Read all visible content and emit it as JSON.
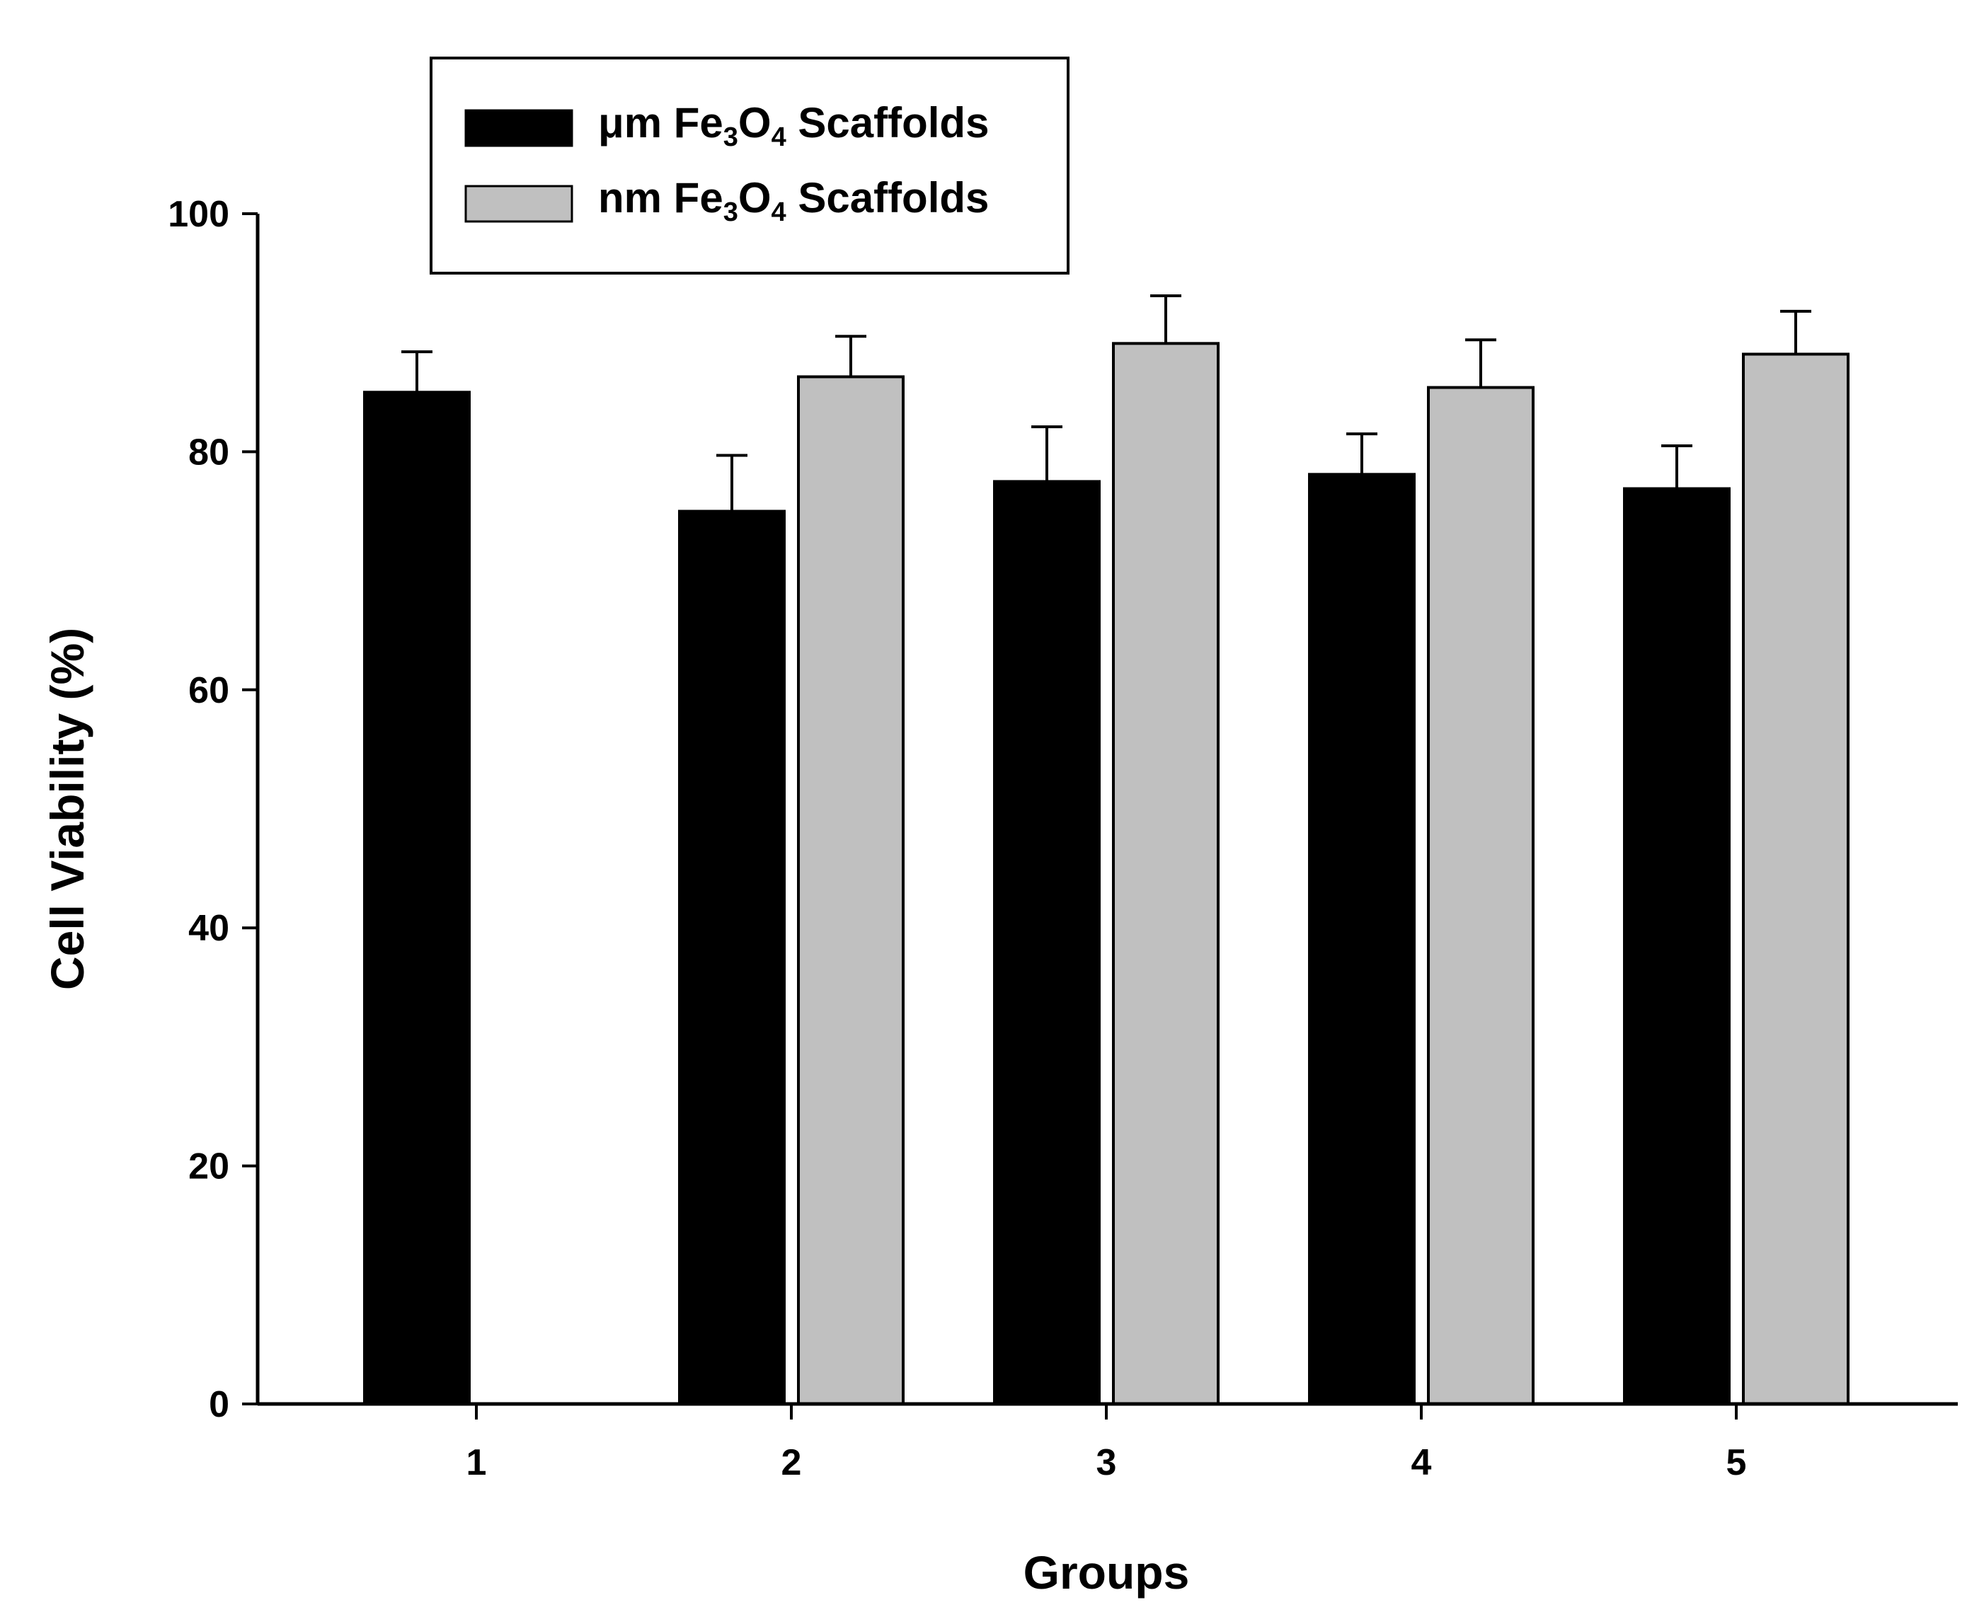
{
  "chart_data": {
    "type": "bar",
    "xlabel": "Groups",
    "ylabel": "Cell Viability (%)",
    "ylim": [
      0,
      100
    ],
    "yticks": [
      "0",
      "20",
      "40",
      "60",
      "80",
      "100"
    ],
    "categories": [
      "1",
      "2",
      "3",
      "4",
      "5"
    ],
    "series": [
      {
        "name": "μm Fe3O4 Scaffolds",
        "legend_parts": [
          "μm Fe",
          "3",
          "O",
          "4",
          " Scaffolds"
        ],
        "color": "#000000",
        "values": [
          85.0,
          75.0,
          77.5,
          78.1,
          76.9
        ],
        "errors": [
          3.4,
          4.7,
          4.6,
          3.4,
          3.6
        ]
      },
      {
        "name": "nm Fe3O4 Scaffolds",
        "legend_parts": [
          "nm Fe",
          "3",
          "O",
          "4",
          " Scaffolds"
        ],
        "color": "#c0c0c0",
        "values": [
          null,
          86.3,
          89.1,
          85.4,
          88.2
        ],
        "errors": [
          null,
          3.4,
          4.0,
          4.0,
          3.6
        ]
      }
    ],
    "legend_position": "top-left",
    "grid": false
  }
}
